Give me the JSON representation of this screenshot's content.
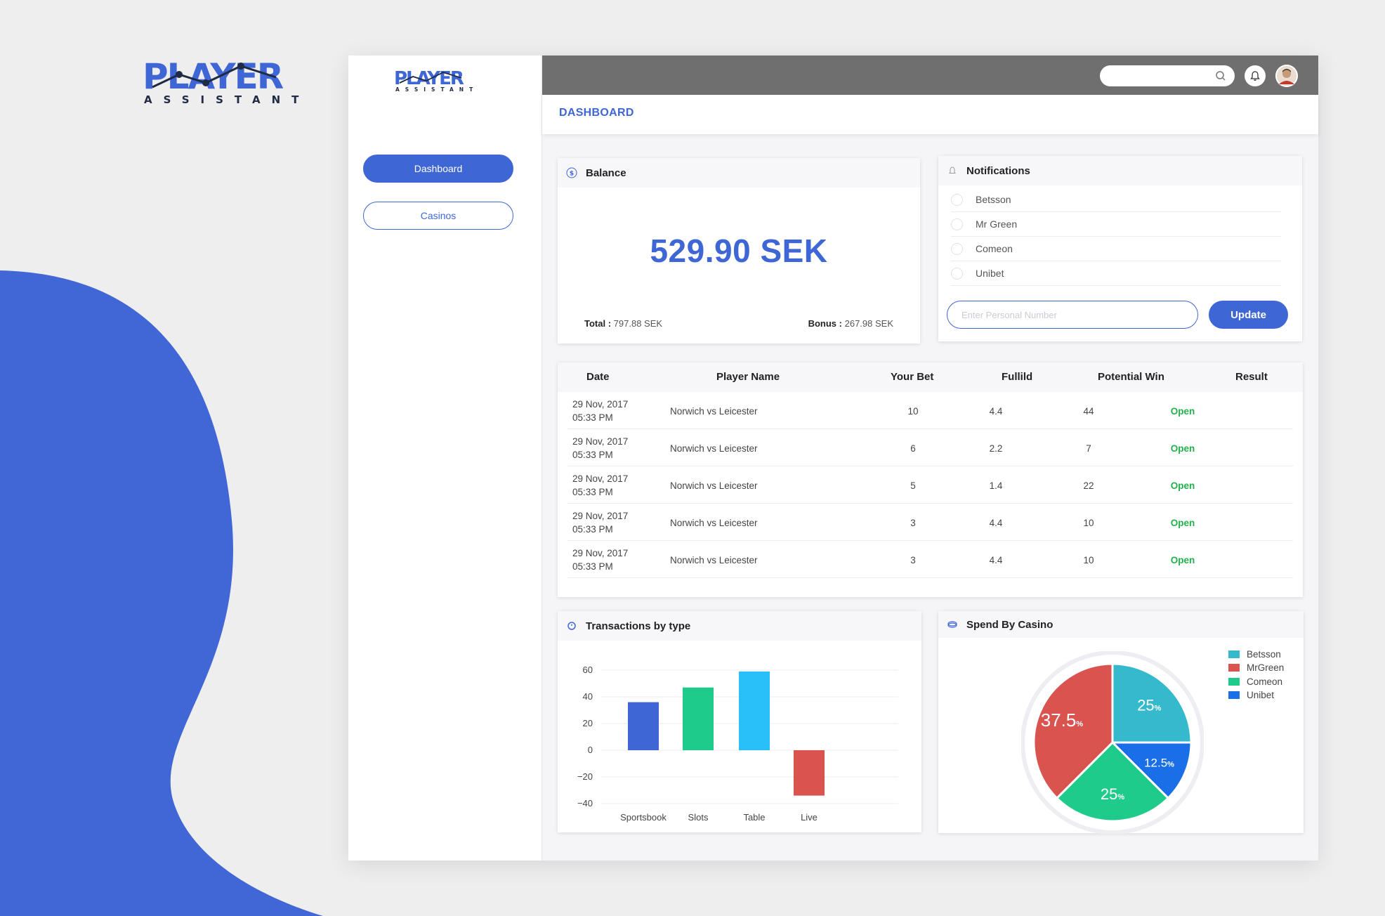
{
  "brand": {
    "word": "PLAYER",
    "sub": "ASSISTANT"
  },
  "sidebar": {
    "items": [
      {
        "label": "Dashboard",
        "active": true
      },
      {
        "label": "Casinos",
        "active": false
      }
    ]
  },
  "topbar": {
    "search_placeholder": "",
    "icons": [
      "search-icon",
      "bell-icon",
      "avatar"
    ]
  },
  "header": {
    "title": "DASHBOARD"
  },
  "balance": {
    "title": "Balance",
    "amount": "529.90 SEK",
    "total_label": "Total :",
    "total_value": "797.88 SEK",
    "bonus_label": "Bonus :",
    "bonus_value": "267.98 SEK"
  },
  "notifications": {
    "title": "Notifications",
    "items": [
      "Betsson",
      "Mr Green",
      "Comeon",
      "Unibet"
    ],
    "input_placeholder": "Enter Personal Number",
    "update_label": "Update"
  },
  "bets": {
    "columns": [
      "Date",
      "Player Name",
      "Your Bet",
      "Fullild",
      "Potential Win",
      "Result"
    ],
    "rows": [
      {
        "date": "29 Nov, 2017",
        "time": "05:33 PM",
        "player": "Norwich vs Leicester",
        "bet": "10",
        "fullild": "4.4",
        "win": "44",
        "result": "Open"
      },
      {
        "date": "29 Nov, 2017",
        "time": "05:33 PM",
        "player": "Norwich vs Leicester",
        "bet": "6",
        "fullild": "2.2",
        "win": "7",
        "result": "Open"
      },
      {
        "date": "29 Nov, 2017",
        "time": "05:33 PM",
        "player": "Norwich vs Leicester",
        "bet": "5",
        "fullild": "1.4",
        "win": "22",
        "result": "Open"
      },
      {
        "date": "29 Nov, 2017",
        "time": "05:33 PM",
        "player": "Norwich vs Leicester",
        "bet": "3",
        "fullild": "4.4",
        "win": "10",
        "result": "Open"
      },
      {
        "date": "29 Nov, 2017",
        "time": "05:33 PM",
        "player": "Norwich vs Leicester",
        "bet": "3",
        "fullild": "4.4",
        "win": "10",
        "result": "Open"
      }
    ]
  },
  "transactions": {
    "title": "Transactions by type"
  },
  "spend": {
    "title": "Spend By Casino"
  },
  "colors": {
    "accent": "#3f66d5",
    "open": "#22b14c",
    "topbar": "#6f6f6f"
  },
  "chart_data": [
    {
      "type": "bar",
      "title": "Transactions by type",
      "categories": [
        "Sportsbook",
        "Slots",
        "Table",
        "Live"
      ],
      "values": [
        36,
        47,
        59,
        -34
      ],
      "colors": [
        "#3f66d5",
        "#1fcb8a",
        "#29bff8",
        "#d9534f"
      ],
      "yticks": [
        60,
        40,
        20,
        0,
        -20,
        -40
      ],
      "ylim": [
        -40,
        60
      ],
      "grid": true
    },
    {
      "type": "pie",
      "title": "Spend By Casino",
      "labels": [
        "Betsson",
        "Unibet",
        "Comeon",
        "MrGreen"
      ],
      "legend": [
        "Betsson",
        "MrGreen",
        "Comeon",
        "Unibet"
      ],
      "values": [
        25,
        12.5,
        25,
        37.5
      ],
      "display": [
        "25",
        "12.5",
        "25",
        "37.5"
      ],
      "unit": "%",
      "colors": {
        "Betsson": "#35b9cc",
        "MrGreen": "#d9534f",
        "Comeon": "#1fcb8a",
        "Unibet": "#1a6fe8"
      },
      "legend_position": "top-right"
    }
  ]
}
